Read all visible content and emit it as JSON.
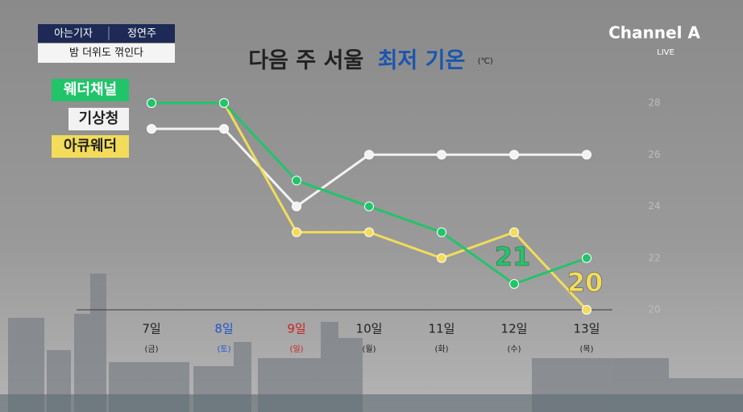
{
  "header": {
    "segment": "아는기자",
    "reporter": "정연주",
    "headline": "밤 더위도 꺾인다",
    "logo": "Channel A",
    "live": "LIVE"
  },
  "chart_data": {
    "type": "line",
    "title": "다음 주 서울",
    "title_highlight": "최저 기온",
    "unit": "(℃)",
    "categories": [
      "7일",
      "8일",
      "9일",
      "10일",
      "11일",
      "12일",
      "13일"
    ],
    "weekdays": [
      "(금)",
      "(토)",
      "(일)",
      "(월)",
      "(화)",
      "(수)",
      "(목)"
    ],
    "category_colors": [
      "#222222",
      "#2255cc",
      "#cc2222",
      "#222222",
      "#222222",
      "#222222",
      "#222222"
    ],
    "series": [
      {
        "name": "웨더채널",
        "color": "#22c46a",
        "values": [
          28,
          28,
          25,
          24,
          23,
          21,
          22
        ]
      },
      {
        "name": "기상청",
        "color": "#f2f2f2",
        "values": [
          27,
          27,
          24,
          26,
          26,
          26,
          26
        ]
      },
      {
        "name": "아큐웨더",
        "color": "#f2dc5a",
        "values": [
          28,
          28,
          23,
          23,
          22,
          23,
          20
        ]
      }
    ],
    "labels": [
      {
        "series": 0,
        "index": 5
      },
      {
        "series": 2,
        "index": 6
      }
    ],
    "ylim": [
      20,
      28
    ],
    "yticks": [
      20,
      22,
      24,
      26,
      28
    ]
  }
}
